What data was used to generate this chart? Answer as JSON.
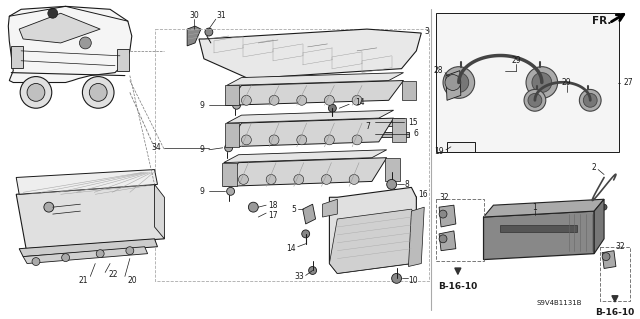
{
  "bg_color": "#ffffff",
  "fig_width": 6.4,
  "fig_height": 3.19,
  "diagram_code": "S9V4B1131B",
  "fr_label": "FR.",
  "b1610_label": "B-16-10",
  "line_color": "#1a1a1a",
  "text_color": "#1a1a1a",
  "label_fs": 5.5,
  "bold_fs": 7.0,
  "part_color": "#cccccc",
  "part_dark": "#555555",
  "part_mid": "#888888"
}
